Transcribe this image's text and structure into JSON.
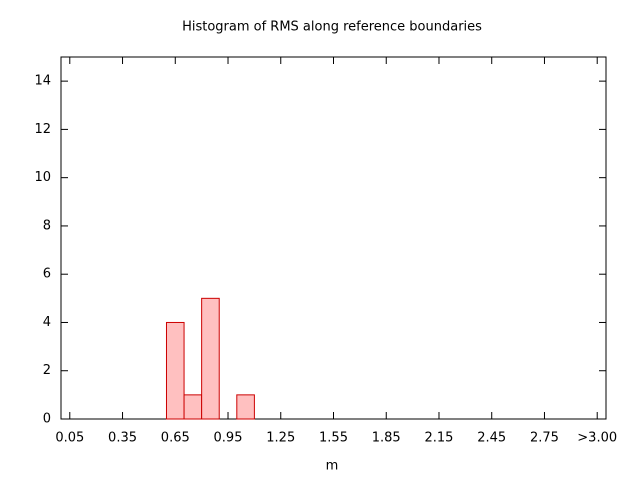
{
  "chart_data": {
    "type": "histogram",
    "title": "Histogram of RMS along reference boundaries",
    "x_label": "m",
    "bins": [
      0,
      0.1,
      0.2,
      0.3,
      0.4,
      0.5,
      0.6,
      0.7,
      0.8,
      0.9,
      1.0,
      1.1,
      1.2,
      1.3,
      1.4,
      1.5,
      1.6,
      1.7,
      1.8,
      1.9,
      2.0,
      2.1,
      2.2,
      2.3,
      2.4,
      2.5,
      2.6,
      2.7,
      2.8,
      2.9,
      3.0,
      3.1
    ],
    "values": [
      0,
      0,
      0,
      0,
      0,
      0,
      4,
      1,
      5,
      0,
      1,
      0,
      0,
      0,
      0,
      0,
      0,
      0,
      0,
      0,
      0,
      0,
      0,
      0,
      0,
      0,
      0,
      0,
      0,
      0,
      0
    ],
    "color": "#ffc0c0",
    "edge_color": "#cc0000",
    "xlim": [
      0,
      3.1
    ],
    "xticks": [
      0.05,
      0.35,
      0.65,
      0.95,
      1.25,
      1.55,
      1.85,
      2.15,
      2.45,
      2.75,
      {
        "value": 3.05,
        "label": ">3.00"
      }
    ],
    "ylim": [
      0,
      15
    ],
    "yticks": [
      0,
      2,
      4,
      6,
      8,
      10,
      12,
      14
    ]
  }
}
